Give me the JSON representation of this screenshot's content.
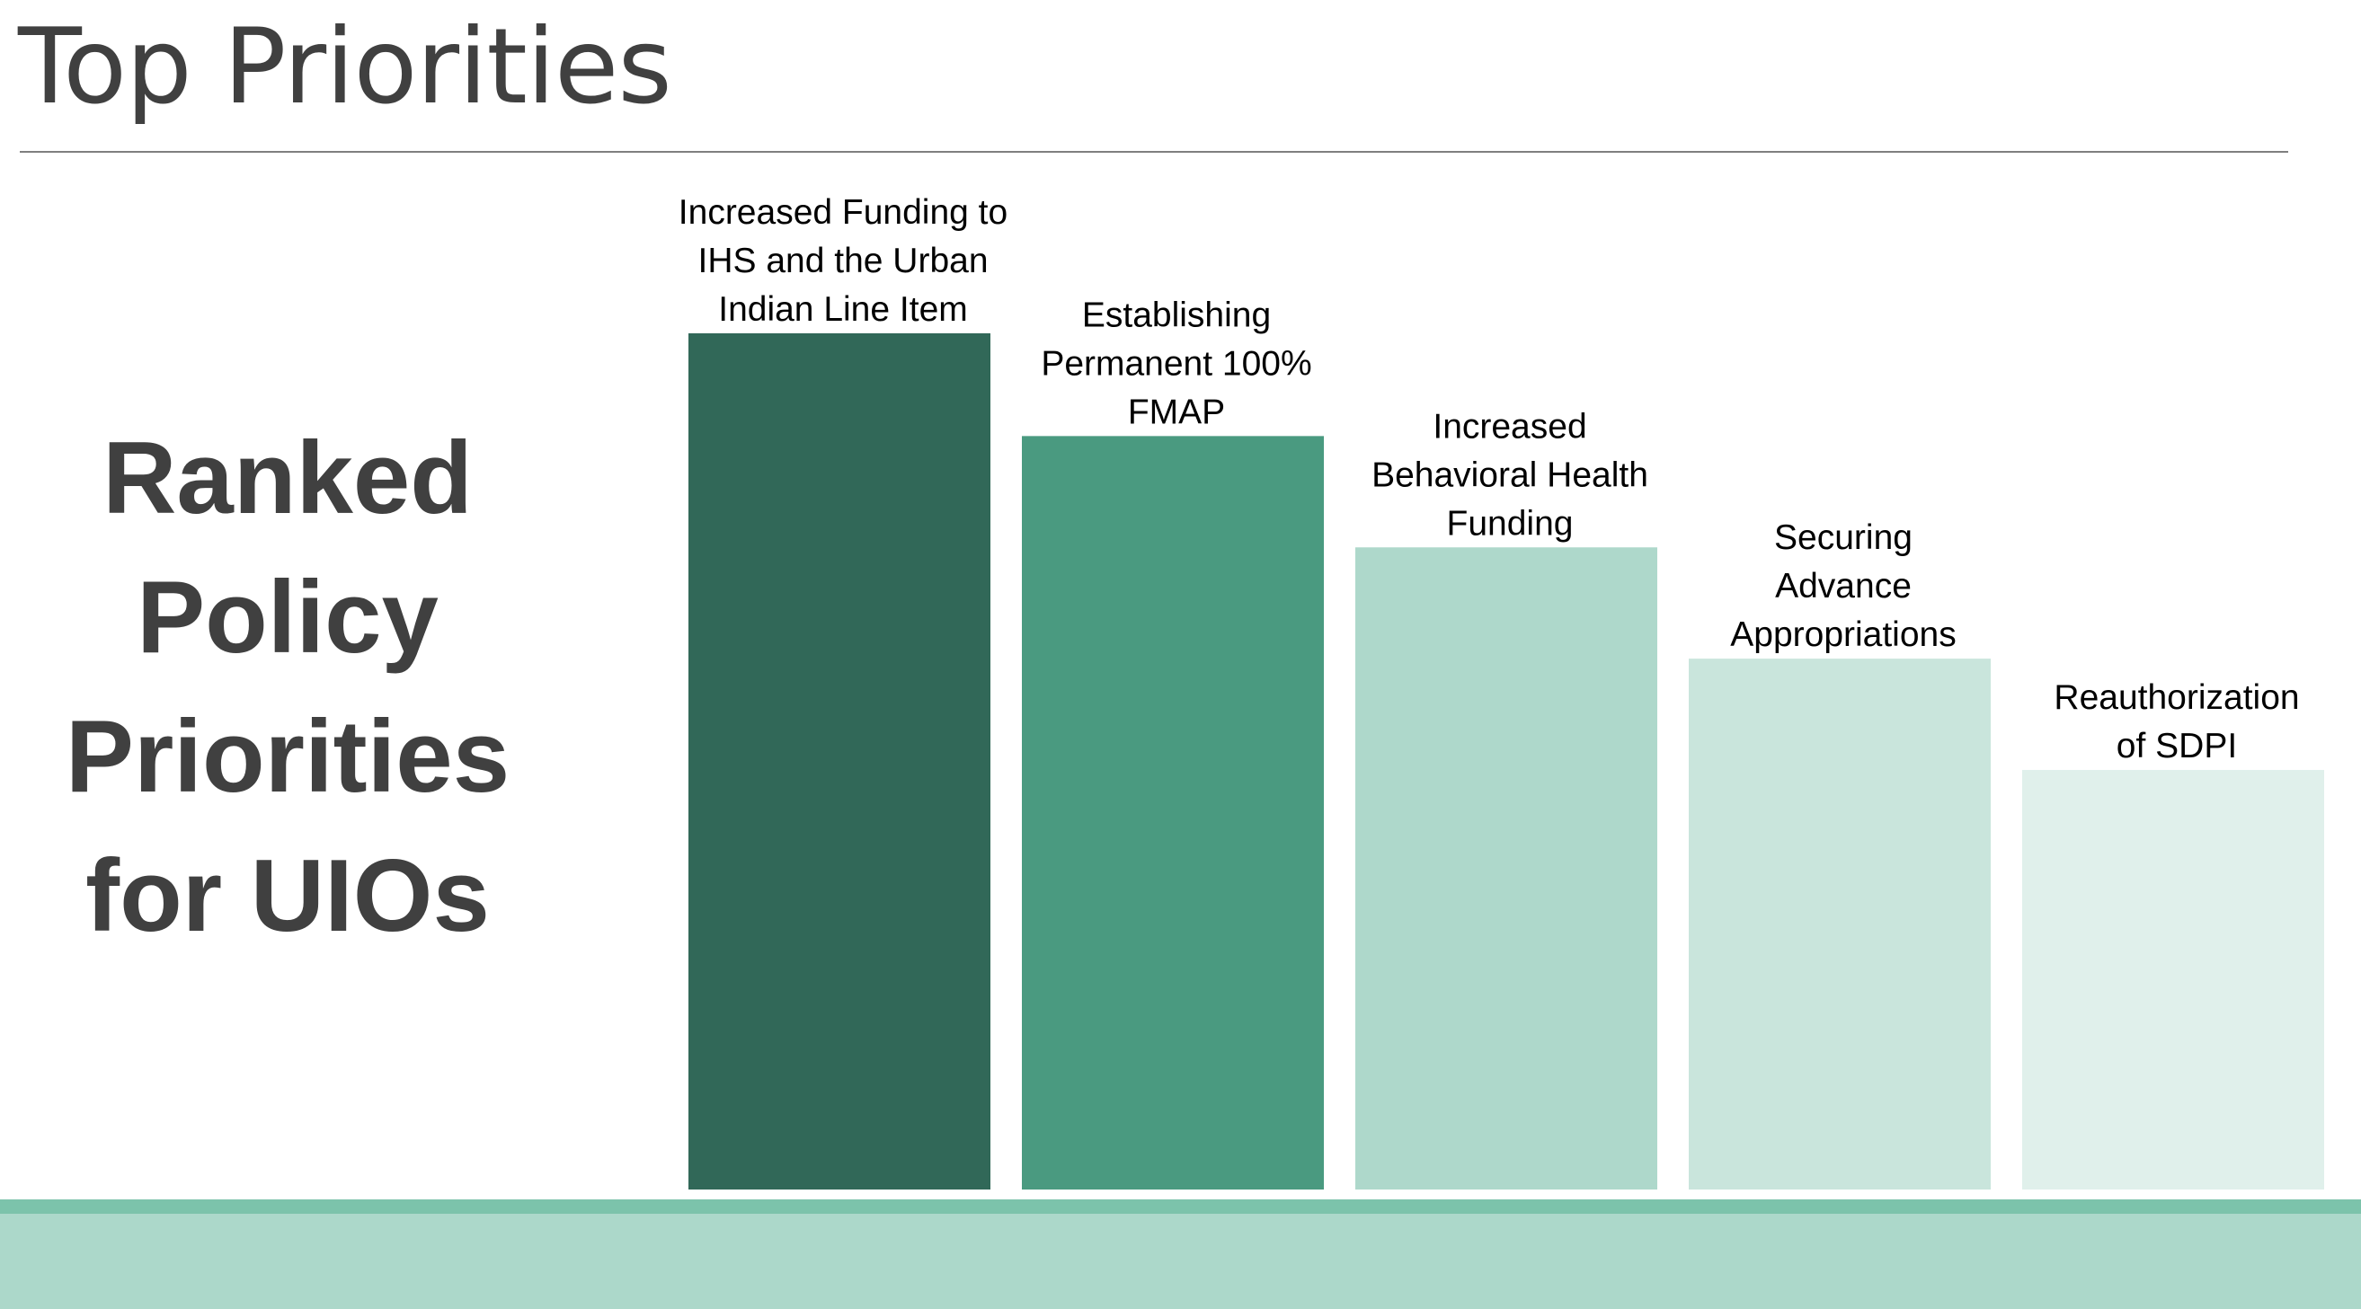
{
  "slide": {
    "title": "Top Priorities",
    "side_heading": [
      "Ranked",
      "Policy",
      "Priorities",
      "for UIOs"
    ]
  },
  "chart_data": {
    "type": "bar",
    "categories": [
      "Increased Funding to IHS and the Urban Indian Line Item",
      "Establishing Permanent 100% FMAP",
      "Increased Behavioral Health Funding",
      "Securing Advance Appropriations",
      "Reauthorization of SDPI"
    ],
    "label_lines": [
      [
        "Increased Funding to",
        "IHS and the Urban",
        "Indian Line Item"
      ],
      [
        "Establishing",
        "Permanent 100%",
        "FMAP"
      ],
      [
        "Increased",
        "Behavioral Health",
        "Funding"
      ],
      [
        "Securing",
        "Advance",
        "Appropriations"
      ],
      [
        "Reauthorization",
        "of SDPI"
      ]
    ],
    "values": [
      5,
      4.4,
      3.75,
      3.1,
      2.45
    ],
    "colors": [
      "#316858",
      "#4a9a80",
      "#aed8cb",
      "#c9e5dc",
      "#e0f0eb"
    ],
    "ylim": [
      0,
      5
    ],
    "grid": false,
    "legend": "none",
    "title": "",
    "xlabel": "",
    "ylabel": ""
  }
}
